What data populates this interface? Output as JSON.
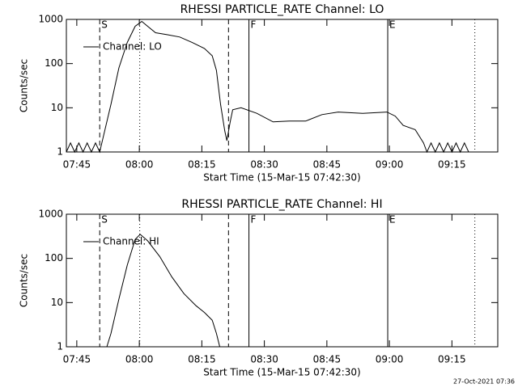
{
  "chart_data": [
    {
      "type": "line",
      "title": "RHESSI PARTICLE_RATE Channel: LO",
      "xlabel": "Start Time (15-Mar-15 07:42:30)",
      "ylabel": "Counts/sec",
      "log_y": true,
      "legend": "top-left",
      "color": "#000000",
      "xlim": [
        462.5,
        566
      ],
      "ylim": [
        1,
        1000
      ],
      "xticks": [
        {
          "value": 465,
          "label": "07:45"
        },
        {
          "value": 480,
          "label": "08:00"
        },
        {
          "value": 495,
          "label": "08:15"
        },
        {
          "value": 510,
          "label": "08:30"
        },
        {
          "value": 525,
          "label": "08:45"
        },
        {
          "value": 540,
          "label": "09:00"
        },
        {
          "value": 555,
          "label": "09:15"
        }
      ],
      "yticks": [
        1,
        10,
        100,
        1000
      ],
      "markers": [
        {
          "x": 470.5,
          "style": "dashed",
          "label": "S"
        },
        {
          "x": 480.1,
          "style": "dotted"
        },
        {
          "x": 501.4,
          "style": "dashed"
        },
        {
          "x": 506.3,
          "style": "solid",
          "label": "F"
        },
        {
          "x": 539.6,
          "style": "solid",
          "label": "E"
        },
        {
          "x": 560.5,
          "style": "dotted"
        }
      ],
      "x": [
        462.5,
        463.5,
        464.5,
        465.5,
        466.5,
        467.5,
        468.5,
        469.5,
        470.5,
        473.2,
        475.1,
        477.1,
        479.0,
        480.6,
        482.0,
        483.9,
        486.8,
        489.7,
        492.7,
        495.6,
        497.5,
        498.5,
        499.5,
        500.5,
        501.0,
        501.8,
        502.4,
        504.4,
        508.2,
        512.1,
        516.0,
        519.9,
        523.8,
        527.7,
        533.6,
        539.4,
        541.4,
        543.3,
        546.2,
        548.2,
        549,
        550,
        551,
        552,
        553,
        554,
        555,
        556,
        557,
        558,
        559,
        560
      ],
      "series": [
        {
          "name": "Channel: LO",
          "color": "#000000",
          "values": [
            1,
            1.6,
            1,
            1.6,
            1,
            1.6,
            1,
            1.6,
            1,
            12,
            80,
            300,
            700,
            900,
            700,
            500,
            450,
            400,
            300,
            220,
            150,
            70,
            12,
            3,
            1.8,
            4.8,
            9,
            10,
            7.5,
            4.8,
            5,
            5,
            7,
            8,
            7.5,
            8,
            6.5,
            4,
            3.2,
            1.6,
            1,
            1.6,
            1,
            1.6,
            1,
            1.6,
            1,
            1.6,
            1,
            1.6,
            1,
            1
          ]
        }
      ]
    },
    {
      "type": "line",
      "title": "RHESSI PARTICLE_RATE Channel: HI",
      "xlabel": "Start Time (15-Mar-15 07:42:30)",
      "ylabel": "Counts/sec",
      "log_y": true,
      "legend": "top-left",
      "color": "#000000",
      "xlim": [
        462.5,
        566
      ],
      "ylim": [
        1,
        1000
      ],
      "xticks": [
        {
          "value": 465,
          "label": "07:45"
        },
        {
          "value": 480,
          "label": "08:00"
        },
        {
          "value": 495,
          "label": "08:15"
        },
        {
          "value": 510,
          "label": "08:30"
        },
        {
          "value": 525,
          "label": "08:45"
        },
        {
          "value": 540,
          "label": "09:00"
        },
        {
          "value": 555,
          "label": "09:15"
        }
      ],
      "yticks": [
        1,
        10,
        100,
        1000
      ],
      "markers": [
        {
          "x": 470.5,
          "style": "dashed",
          "label": "S"
        },
        {
          "x": 480.1,
          "style": "dotted"
        },
        {
          "x": 501.4,
          "style": "dashed"
        },
        {
          "x": 506.3,
          "style": "solid",
          "label": "F"
        },
        {
          "x": 539.6,
          "style": "solid",
          "label": "E"
        },
        {
          "x": 560.5,
          "style": "dotted"
        }
      ],
      "x": [
        472.2,
        473.2,
        475.1,
        477.1,
        479.0,
        480.2,
        482.0,
        484.9,
        487.8,
        490.7,
        493.6,
        495.6,
        497.5,
        498.5,
        499.3
      ],
      "series": [
        {
          "name": "Channel: HI",
          "color": "#000000",
          "values": [
            1,
            2,
            12,
            70,
            270,
            350,
            250,
            110,
            38,
            16,
            8.5,
            6,
            4,
            2,
            1
          ]
        }
      ]
    }
  ],
  "footer": "27-Oct-2021 07:36"
}
